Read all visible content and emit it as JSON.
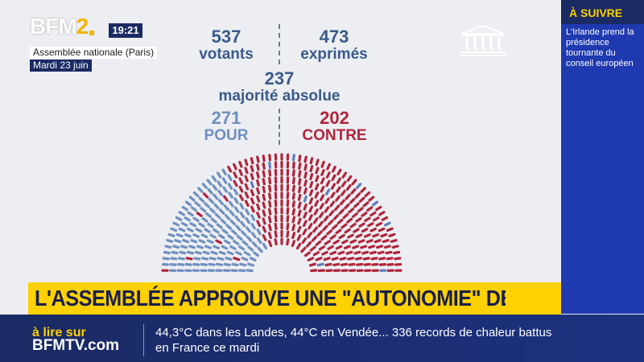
{
  "channel": {
    "logo_text": "BFM",
    "logo_num": "2",
    "clock": "19:21",
    "location": "Assemblée nationale (Paris)",
    "date": "Mardi 23 juin"
  },
  "vote": {
    "votants_value": "537",
    "votants_label": "votants",
    "exprimes_value": "473",
    "exprimes_label": "exprimés",
    "majorite_value": "237",
    "majorite_label": "majorité absolue",
    "pour_value": "271",
    "pour_label": "POUR",
    "contre_value": "202",
    "contre_label": "CONTRE",
    "pour_color": "#6f8fc0",
    "contre_color": "#b0243a",
    "absent_color": "#5d7fb8",
    "pour_count": 271,
    "contre_count": 202
  },
  "side_panel": {
    "title": "À SUIVRE",
    "text": "L'Irlande prend la présidence tournante du conseil européen"
  },
  "headline": {
    "text": "L'ASSEMBLÉE APPROUVE UNE \"AUTONOMIE\" DE LA CORSE",
    "background": "#ffd100"
  },
  "ticker": {
    "label_top": "à lire sur",
    "label_bottom": "BFMTV.com",
    "line1": "44,3°C dans les Landes, 44°C en Vendée... 336 records de chaleur battus",
    "line2": "en France ce mardi"
  },
  "icons": {
    "assembly": "parliament-building-icon"
  }
}
